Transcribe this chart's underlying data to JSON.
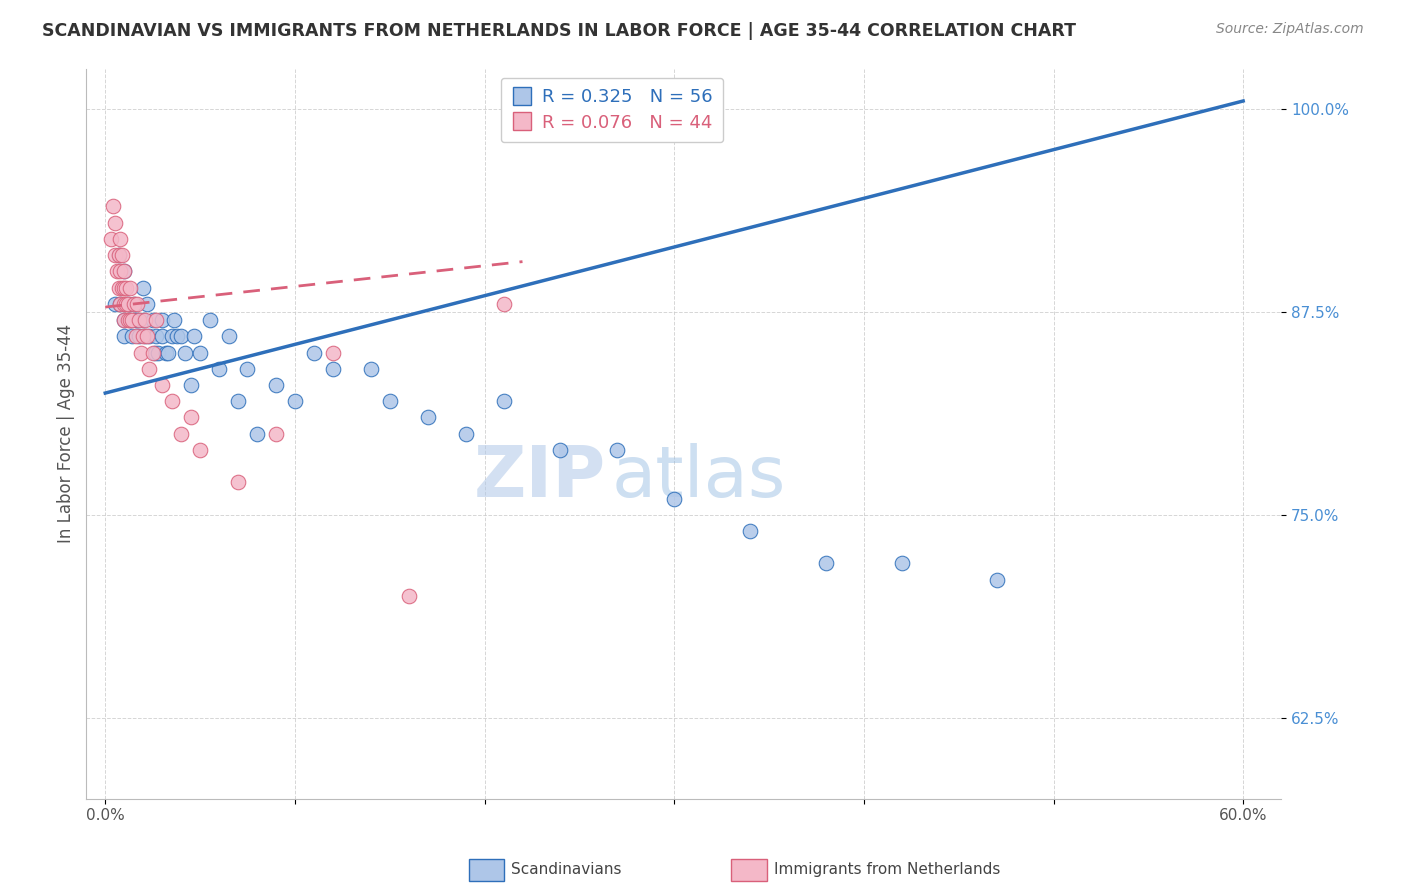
{
  "title": "SCANDINAVIAN VS IMMIGRANTS FROM NETHERLANDS IN LABOR FORCE | AGE 35-44 CORRELATION CHART",
  "source_text": "Source: ZipAtlas.com",
  "ylabel": "In Labor Force | Age 35-44",
  "xlim": [
    -0.01,
    0.62
  ],
  "ylim": [
    0.575,
    1.025
  ],
  "xticks": [
    0.0,
    0.1,
    0.2,
    0.3,
    0.4,
    0.5,
    0.6
  ],
  "xticklabels": [
    "0.0%",
    "",
    "",
    "",
    "",
    "",
    "60.0%"
  ],
  "yticks": [
    0.625,
    0.75,
    0.875,
    1.0
  ],
  "yticklabels": [
    "62.5%",
    "75.0%",
    "87.5%",
    "100.0%"
  ],
  "blue_R": 0.325,
  "blue_N": 56,
  "pink_R": 0.076,
  "pink_N": 44,
  "legend_label_blue": "Scandinavians",
  "legend_label_pink": "Immigrants from Netherlands",
  "blue_color": "#aec6e8",
  "pink_color": "#f4b8c8",
  "blue_line_color": "#2e6fba",
  "pink_line_color": "#d9607a",
  "watermark_zip": "ZIP",
  "watermark_atlas": "atlas",
  "blue_line_x0": 0.0,
  "blue_line_y0": 0.825,
  "blue_line_x1": 0.6,
  "blue_line_y1": 1.005,
  "pink_line_x0": 0.0,
  "pink_line_y0": 0.878,
  "pink_line_x1": 0.22,
  "pink_line_y1": 0.906,
  "blue_scatter_x": [
    0.005,
    0.007,
    0.008,
    0.01,
    0.01,
    0.01,
    0.012,
    0.013,
    0.014,
    0.015,
    0.016,
    0.017,
    0.018,
    0.02,
    0.02,
    0.021,
    0.022,
    0.023,
    0.025,
    0.026,
    0.027,
    0.028,
    0.03,
    0.03,
    0.032,
    0.033,
    0.035,
    0.036,
    0.038,
    0.04,
    0.042,
    0.045,
    0.047,
    0.05,
    0.055,
    0.06,
    0.065,
    0.07,
    0.075,
    0.08,
    0.09,
    0.1,
    0.11,
    0.12,
    0.14,
    0.15,
    0.17,
    0.19,
    0.21,
    0.24,
    0.27,
    0.3,
    0.34,
    0.38,
    0.42,
    0.47
  ],
  "blue_scatter_y": [
    0.88,
    0.91,
    0.88,
    0.87,
    0.9,
    0.86,
    0.88,
    0.87,
    0.86,
    0.88,
    0.87,
    0.87,
    0.86,
    0.89,
    0.87,
    0.86,
    0.88,
    0.86,
    0.87,
    0.85,
    0.86,
    0.85,
    0.87,
    0.86,
    0.85,
    0.85,
    0.86,
    0.87,
    0.86,
    0.86,
    0.85,
    0.83,
    0.86,
    0.85,
    0.87,
    0.84,
    0.86,
    0.82,
    0.84,
    0.8,
    0.83,
    0.82,
    0.85,
    0.84,
    0.84,
    0.82,
    0.81,
    0.8,
    0.82,
    0.79,
    0.79,
    0.76,
    0.74,
    0.72,
    0.72,
    0.71
  ],
  "pink_scatter_x": [
    0.003,
    0.004,
    0.005,
    0.005,
    0.006,
    0.007,
    0.007,
    0.008,
    0.008,
    0.008,
    0.009,
    0.009,
    0.01,
    0.01,
    0.01,
    0.01,
    0.011,
    0.011,
    0.012,
    0.012,
    0.013,
    0.013,
    0.014,
    0.015,
    0.016,
    0.017,
    0.018,
    0.019,
    0.02,
    0.021,
    0.022,
    0.023,
    0.025,
    0.027,
    0.03,
    0.035,
    0.04,
    0.045,
    0.05,
    0.07,
    0.09,
    0.12,
    0.16,
    0.21
  ],
  "pink_scatter_y": [
    0.92,
    0.94,
    0.93,
    0.91,
    0.9,
    0.89,
    0.91,
    0.9,
    0.88,
    0.92,
    0.89,
    0.91,
    0.89,
    0.9,
    0.88,
    0.87,
    0.88,
    0.89,
    0.87,
    0.88,
    0.87,
    0.89,
    0.87,
    0.88,
    0.86,
    0.88,
    0.87,
    0.85,
    0.86,
    0.87,
    0.86,
    0.84,
    0.85,
    0.87,
    0.83,
    0.82,
    0.8,
    0.81,
    0.79,
    0.77,
    0.8,
    0.85,
    0.7,
    0.88
  ]
}
